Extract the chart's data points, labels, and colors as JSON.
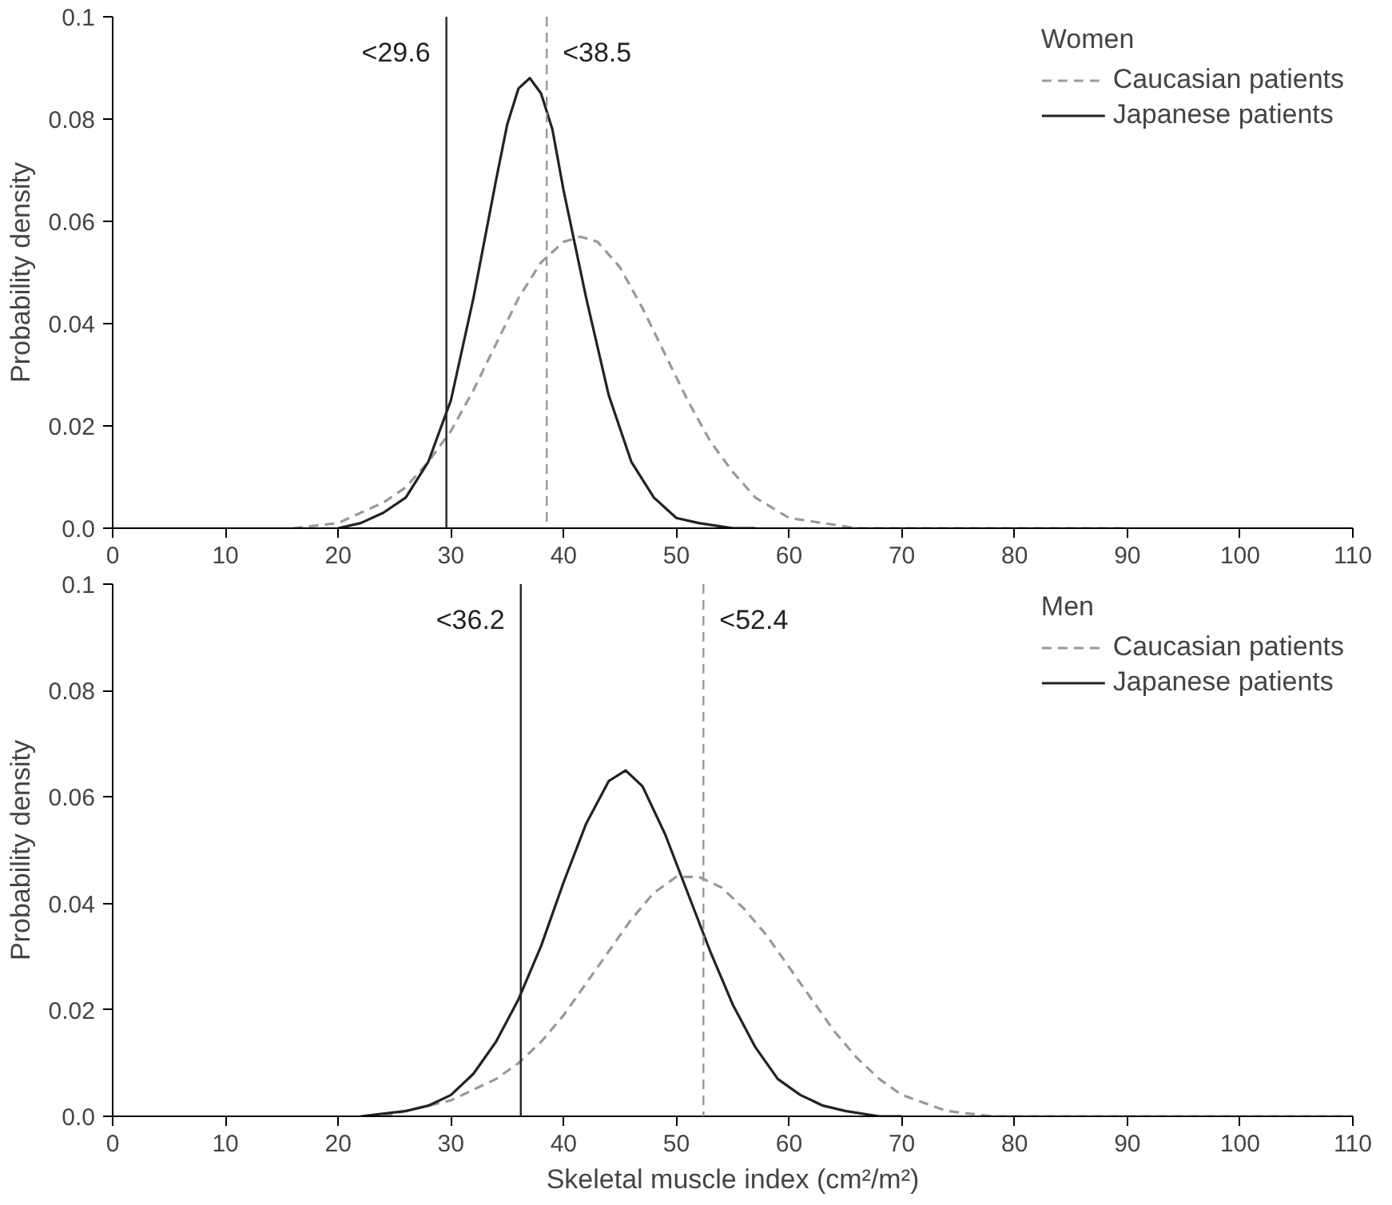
{
  "chart_data": [
    {
      "type": "line",
      "legend_title": "Women",
      "ylabel": "Probability density",
      "xlim": [
        0,
        110
      ],
      "ylim": [
        0,
        0.1
      ],
      "xticks": [
        0,
        10,
        20,
        30,
        40,
        50,
        60,
        70,
        80,
        90,
        100,
        110
      ],
      "yticks": [
        {
          "value": 0,
          "label": "0.0"
        },
        0.02,
        0.04,
        0.06,
        0.08,
        0.1
      ],
      "grid": false,
      "legend": "top right",
      "series": [
        {
          "name": "Caucasian patients",
          "color": "#999999",
          "line_style": "dashed",
          "x": [
            16,
            20,
            24,
            26,
            28,
            30,
            32,
            34,
            36,
            38,
            40,
            41.5,
            43,
            45,
            47,
            49,
            51,
            53,
            55,
            57,
            60,
            63,
            66,
            90
          ],
          "values": [
            0,
            0.001,
            0.005,
            0.008,
            0.013,
            0.019,
            0.027,
            0.036,
            0.045,
            0.052,
            0.056,
            0.057,
            0.056,
            0.051,
            0.043,
            0.034,
            0.025,
            0.017,
            0.011,
            0.006,
            0.002,
            0.001,
            0,
            0
          ]
        },
        {
          "name": "Japanese patients",
          "color": "#222222",
          "line_style": "solid",
          "x": [
            20,
            22,
            24,
            26,
            28,
            30,
            32,
            34,
            35,
            36,
            37,
            38,
            39,
            40,
            42,
            44,
            46,
            48,
            50,
            52,
            55,
            57
          ],
          "values": [
            0,
            0.001,
            0.003,
            0.006,
            0.013,
            0.025,
            0.045,
            0.068,
            0.079,
            0.086,
            0.088,
            0.085,
            0.078,
            0.066,
            0.045,
            0.026,
            0.013,
            0.006,
            0.002,
            0.001,
            0,
            0
          ]
        }
      ],
      "ref_lines": [
        {
          "axis": "x",
          "value": 29.6,
          "label": "<29.6",
          "color": "#222222",
          "line_style": "solid"
        },
        {
          "axis": "x",
          "value": 38.5,
          "label": "<38.5",
          "color": "#999999",
          "line_style": "dashed"
        }
      ]
    },
    {
      "type": "line",
      "legend_title": "Men",
      "ylabel": "Probability density",
      "xlabel": "Skeletal muscle index (cm²/m²)",
      "xlim": [
        0,
        110
      ],
      "ylim": [
        0,
        0.1
      ],
      "xticks": [
        0,
        10,
        20,
        30,
        40,
        50,
        60,
        70,
        80,
        90,
        100,
        110
      ],
      "yticks": [
        {
          "value": 0,
          "label": "0.0"
        },
        0.02,
        0.04,
        0.06,
        0.08,
        0.1
      ],
      "grid": false,
      "legend": "top right",
      "series": [
        {
          "name": "Caucasian patients",
          "color": "#999999",
          "line_style": "dashed",
          "x": [
            24,
            26,
            30,
            34,
            36,
            38,
            40,
            42,
            44,
            46,
            48,
            50,
            52,
            54,
            56,
            58,
            60,
            62,
            64,
            66,
            68,
            70,
            74,
            78,
            90,
            110
          ],
          "values": [
            0,
            0.001,
            0.003,
            0.007,
            0.01,
            0.014,
            0.019,
            0.025,
            0.031,
            0.037,
            0.042,
            0.045,
            0.045,
            0.043,
            0.039,
            0.034,
            0.028,
            0.022,
            0.016,
            0.011,
            0.007,
            0.004,
            0.001,
            0,
            0,
            0
          ]
        },
        {
          "name": "Japanese patients",
          "color": "#222222",
          "line_style": "solid",
          "x": [
            22,
            26,
            28,
            30,
            32,
            34,
            36,
            38,
            40,
            42,
            44,
            45.5,
            47,
            49,
            51,
            53,
            55,
            57,
            59,
            61,
            63,
            65,
            68,
            70
          ],
          "values": [
            0,
            0.001,
            0.002,
            0.004,
            0.008,
            0.014,
            0.022,
            0.032,
            0.044,
            0.055,
            0.063,
            0.065,
            0.062,
            0.053,
            0.042,
            0.031,
            0.021,
            0.013,
            0.007,
            0.004,
            0.002,
            0.001,
            0,
            0
          ]
        }
      ],
      "ref_lines": [
        {
          "axis": "x",
          "value": 36.2,
          "label": "<36.2",
          "color": "#222222",
          "line_style": "solid"
        },
        {
          "axis": "x",
          "value": 52.4,
          "label": "<52.4",
          "color": "#999999",
          "line_style": "dashed"
        }
      ]
    }
  ]
}
